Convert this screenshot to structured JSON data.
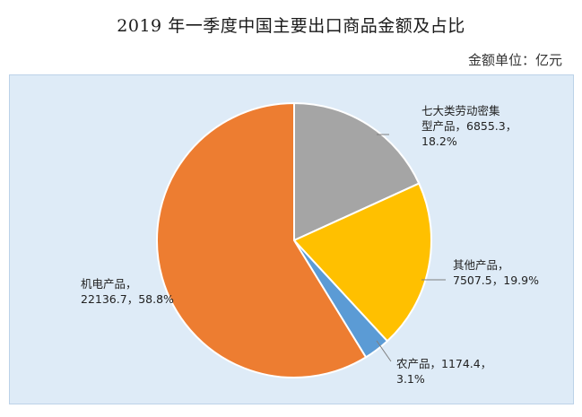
{
  "title": "2019 年一季度中国主要出口商品金额及占比",
  "unit": "金额单位：亿元",
  "chart_data": {
    "type": "pie",
    "title": "2019 年一季度中国主要出口商品金额及占比",
    "unit": "亿元",
    "slices": [
      {
        "name": "七大类劳动密集型产品",
        "value": 6855.3,
        "percent": 18.2,
        "color": "#a5a5a5",
        "label_lines": [
          "七大类劳动密集",
          "型产品，6855.3，",
          "18.2%"
        ]
      },
      {
        "name": "其他产品",
        "value": 7507.5,
        "percent": 19.9,
        "color": "#ffc000",
        "label_lines": [
          "其他产品，",
          "7507.5，19.9%"
        ]
      },
      {
        "name": "农产品",
        "value": 1174.4,
        "percent": 3.1,
        "color": "#5b9bd5",
        "label_lines": [
          "农产品，1174.4，",
          "3.1%"
        ]
      },
      {
        "name": "机电产品",
        "value": 22136.7,
        "percent": 58.8,
        "color": "#ed7d31",
        "label_lines": [
          "机电产品，",
          "22136.7，58.8%"
        ]
      }
    ],
    "legend": "none"
  }
}
